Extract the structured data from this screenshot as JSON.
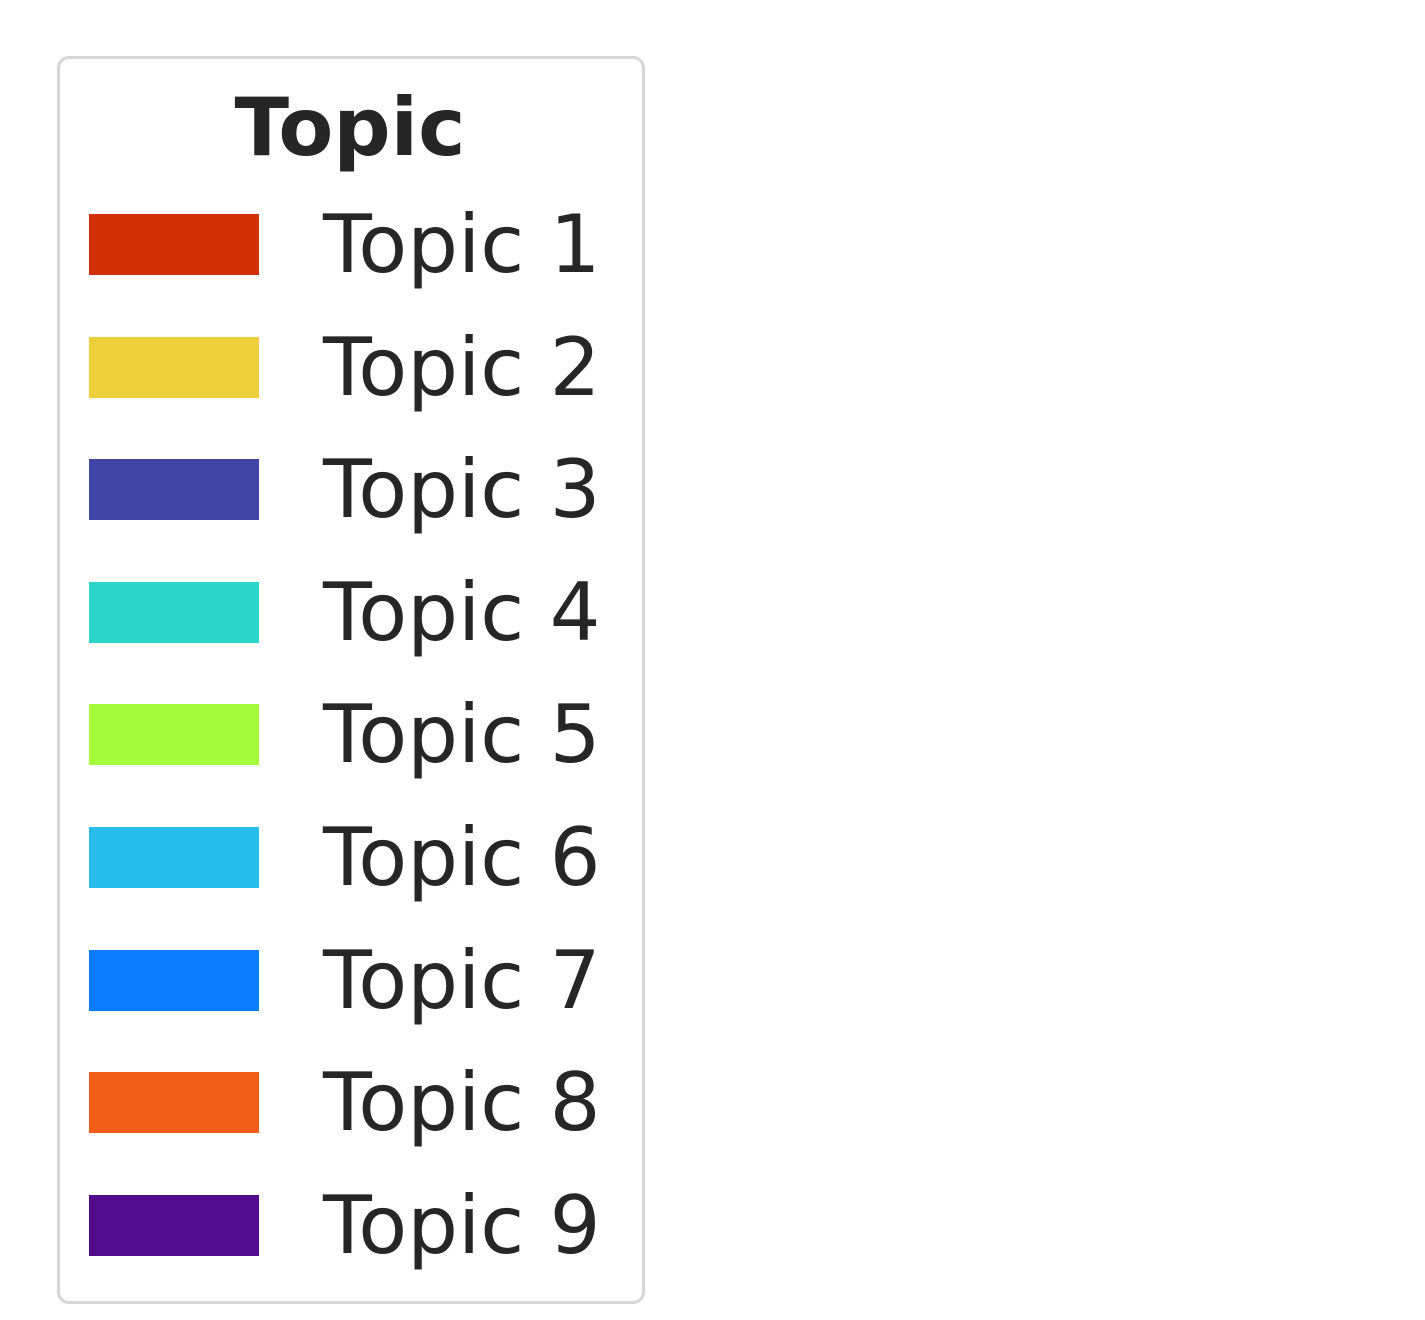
{
  "chart_data": {
    "type": "legend",
    "legend": {
      "title": "Topic",
      "entries": [
        {
          "label": "Topic 1",
          "color": "#d12f06"
        },
        {
          "label": "Topic 2",
          "color": "#efce3b"
        },
        {
          "label": "Topic 3",
          "color": "#4045a6"
        },
        {
          "label": "Topic 4",
          "color": "#2bd5c9"
        },
        {
          "label": "Topic 5",
          "color": "#a4fc3b"
        },
        {
          "label": "Topic 6",
          "color": "#28bcea"
        },
        {
          "label": "Topic 7",
          "color": "#0a7dfe"
        },
        {
          "label": "Topic 8",
          "color": "#f05e18"
        },
        {
          "label": "Topic 9",
          "color": "#520b8b"
        }
      ]
    }
  }
}
